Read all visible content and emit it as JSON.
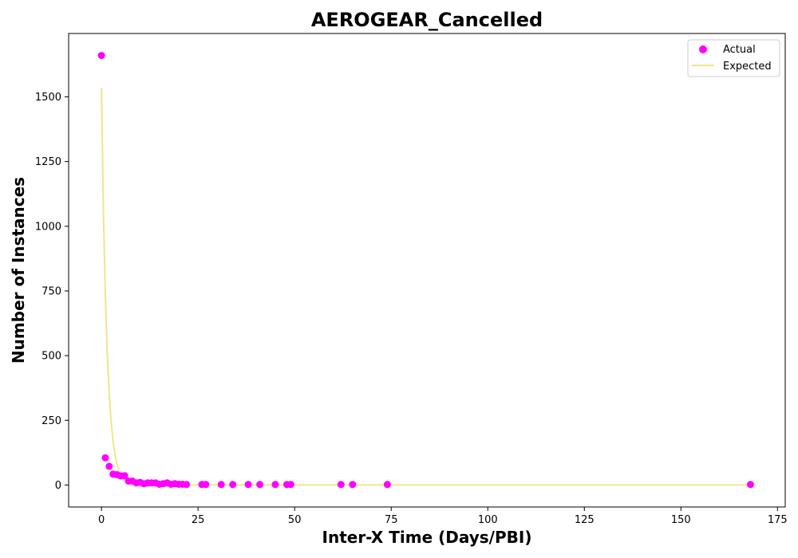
{
  "chart_data": {
    "type": "scatter",
    "title": "AEROGEAR_Cancelled",
    "xlabel": "Inter-X Time (Days/PBI)",
    "ylabel": "Number of Instances",
    "xlim": [
      -8.5,
      177
    ],
    "ylim": [
      -85,
      1745
    ],
    "xticks": [
      0,
      25,
      50,
      75,
      100,
      125,
      150,
      175
    ],
    "yticks": [
      0,
      250,
      500,
      750,
      1000,
      1250,
      1500
    ],
    "grid": false,
    "legend_position": "top-right",
    "colors": {
      "actual": "#ff00ff",
      "expected": "#f0e68c"
    },
    "series": [
      {
        "name": "Actual",
        "kind": "scatter",
        "points": [
          [
            0,
            1660
          ],
          [
            1,
            105
          ],
          [
            2,
            72
          ],
          [
            3,
            42
          ],
          [
            4,
            40
          ],
          [
            5,
            35
          ],
          [
            6,
            36
          ],
          [
            7,
            15
          ],
          [
            8,
            15
          ],
          [
            9,
            8
          ],
          [
            10,
            10
          ],
          [
            11,
            5
          ],
          [
            12,
            8
          ],
          [
            13,
            8
          ],
          [
            14,
            8
          ],
          [
            15,
            3
          ],
          [
            16,
            5
          ],
          [
            17,
            8
          ],
          [
            18,
            3
          ],
          [
            19,
            5
          ],
          [
            20,
            3
          ],
          [
            21,
            3
          ],
          [
            22,
            2
          ],
          [
            26,
            2
          ],
          [
            27,
            2
          ],
          [
            31,
            2
          ],
          [
            34,
            2
          ],
          [
            38,
            2
          ],
          [
            41,
            2
          ],
          [
            45,
            2
          ],
          [
            48,
            2
          ],
          [
            49,
            2
          ],
          [
            62,
            2
          ],
          [
            65,
            2
          ],
          [
            74,
            2
          ],
          [
            168,
            2
          ]
        ]
      },
      {
        "name": "Expected",
        "kind": "line",
        "points": [
          [
            0,
            1535
          ],
          [
            0.5,
            1060
          ],
          [
            1,
            735
          ],
          [
            1.5,
            510
          ],
          [
            2,
            355
          ],
          [
            2.5,
            245
          ],
          [
            3,
            170
          ],
          [
            3.5,
            118
          ],
          [
            4,
            82
          ],
          [
            5,
            40
          ],
          [
            6,
            19
          ],
          [
            7,
            9
          ],
          [
            8,
            4
          ],
          [
            10,
            1
          ],
          [
            12,
            0.3
          ],
          [
            15,
            0
          ],
          [
            25,
            0
          ],
          [
            50,
            0
          ],
          [
            100,
            0
          ],
          [
            168,
            0
          ]
        ]
      }
    ]
  }
}
